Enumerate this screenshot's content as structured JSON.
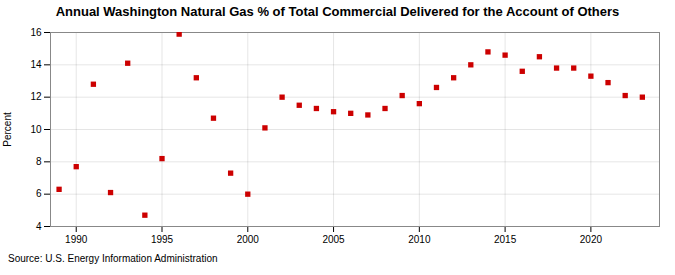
{
  "chart_data": {
    "type": "scatter",
    "title": "Annual Washington Natural Gas % of Total Commercial Delivered for the Account of Others",
    "ylabel": "Percent",
    "source": "Source: U.S. Energy Information Administration",
    "x": [
      1989,
      1990,
      1991,
      1992,
      1993,
      1994,
      1995,
      1996,
      1997,
      1998,
      1999,
      2000,
      2001,
      2002,
      2003,
      2004,
      2005,
      2006,
      2007,
      2008,
      2009,
      2010,
      2011,
      2012,
      2013,
      2014,
      2015,
      2016,
      2017,
      2018,
      2019,
      2020,
      2021,
      2022,
      2023
    ],
    "values": [
      6.3,
      7.7,
      12.8,
      6.1,
      14.1,
      4.7,
      8.2,
      15.9,
      13.2,
      10.7,
      7.3,
      6.0,
      10.1,
      12.0,
      11.5,
      11.3,
      11.1,
      11.0,
      10.9,
      11.3,
      12.1,
      11.6,
      12.6,
      13.2,
      14.0,
      14.8,
      14.6,
      13.6,
      14.5,
      13.8,
      13.8,
      13.3,
      12.9,
      12.1,
      12.0
    ],
    "color": "#cc0000",
    "marker": "square",
    "xlim": [
      1988.5,
      2024
    ],
    "xticks": [
      1990,
      1995,
      2000,
      2005,
      2010,
      2015,
      2020
    ],
    "ylim": [
      4,
      16
    ],
    "yticks": [
      4,
      6,
      8,
      10,
      12,
      14,
      16
    ],
    "grid": true
  }
}
